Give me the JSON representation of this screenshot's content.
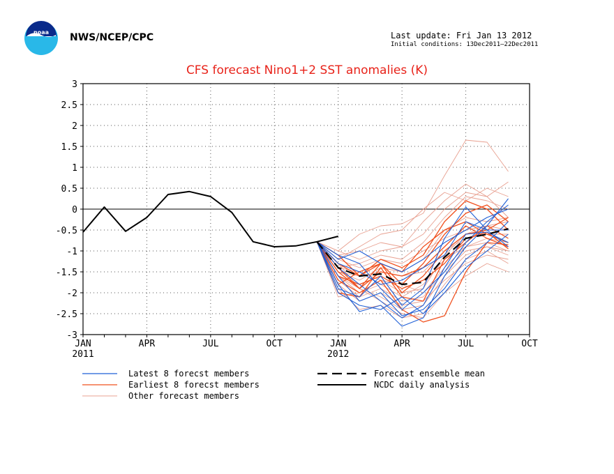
{
  "header": {
    "org": "NWS/NCEP/CPC",
    "last_update": "Last update: Fri Jan 13 2012",
    "initial_conditions": "Initial conditions: 13Dec2011–22Dec2011",
    "logo_text": "noaa"
  },
  "colors": {
    "latest": "#1f5fd6",
    "earliest": "#f0501e",
    "other": "#e8a090",
    "mean": "#000000",
    "analysis": "#000000",
    "title": "#e8231a"
  },
  "legend": {
    "latest": "Latest 8 forecst members",
    "earliest": "Earliest 8 forecst members",
    "other": "Other forecast members",
    "mean": "Forecast ensemble mean",
    "analysis": "NCDC daily analysis"
  },
  "chart_data": {
    "type": "line",
    "title": "CFS forecast Nino1+2 SST anomalies (K)",
    "ylabel": "",
    "xlabel": "",
    "ylim": [
      -3,
      3
    ],
    "yticks": [
      -3,
      -2.5,
      -2,
      -1.5,
      -1,
      -0.5,
      0,
      0.5,
      1,
      1.5,
      2,
      2.5,
      3
    ],
    "ytick_labels": [
      "-3",
      "-2.5",
      "-2",
      "-1.5",
      "-1",
      "-0.5",
      "0",
      "0.5",
      "1",
      "1.5",
      "2",
      "2.5",
      "3"
    ],
    "xlim": [
      "2011-01",
      "2012-10"
    ],
    "xticks": [
      {
        "x": "2011-01",
        "label": "JAN",
        "sublabel": "2011"
      },
      {
        "x": "2011-04",
        "label": "APR",
        "sublabel": ""
      },
      {
        "x": "2011-07",
        "label": "JUL",
        "sublabel": ""
      },
      {
        "x": "2011-10",
        "label": "OCT",
        "sublabel": ""
      },
      {
        "x": "2012-01",
        "label": "JAN",
        "sublabel": "2012"
      },
      {
        "x": "2012-04",
        "label": "APR",
        "sublabel": ""
      },
      {
        "x": "2012-07",
        "label": "JUL",
        "sublabel": ""
      },
      {
        "x": "2012-10",
        "label": "OCT",
        "sublabel": ""
      }
    ],
    "grid": true,
    "zero_line": true,
    "forecast_months": [
      "2011-12",
      "2012-01",
      "2012-02",
      "2012-03",
      "2012-04",
      "2012-05",
      "2012-06",
      "2012-07",
      "2012-08",
      "2012-09"
    ],
    "series": [
      {
        "name": "NCDC daily analysis",
        "group": "analysis",
        "x": [
          "2011-01",
          "2011-02",
          "2011-03",
          "2011-04",
          "2011-05",
          "2011-06",
          "2011-07",
          "2011-08",
          "2011-09",
          "2011-10",
          "2011-11",
          "2011-12",
          "2012-01"
        ],
        "values": [
          -0.55,
          0.05,
          -0.53,
          -0.2,
          0.35,
          0.42,
          0.3,
          -0.08,
          -0.78,
          -0.9,
          -0.88,
          -0.78,
          -0.65
        ]
      },
      {
        "name": "Forecast ensemble mean",
        "group": "mean",
        "values": [
          -0.78,
          -1.4,
          -1.6,
          -1.55,
          -1.8,
          -1.75,
          -1.15,
          -0.7,
          -0.6,
          -0.47
        ]
      },
      {
        "group": "latest",
        "values": [
          -0.78,
          -1.8,
          -2.45,
          -2.3,
          -2.8,
          -2.6,
          -1.6,
          -0.9,
          -0.4,
          0.25
        ]
      },
      {
        "group": "latest",
        "values": [
          -0.78,
          -1.6,
          -2.2,
          -2.0,
          -2.55,
          -2.4,
          -1.9,
          -1.2,
          -0.8,
          -0.3
        ]
      },
      {
        "group": "latest",
        "values": [
          -0.78,
          -1.2,
          -1.0,
          -1.3,
          -1.5,
          -1.2,
          -0.8,
          -0.5,
          -0.2,
          0.0
        ]
      },
      {
        "group": "latest",
        "values": [
          -0.78,
          -1.9,
          -2.1,
          -1.6,
          -2.3,
          -1.9,
          -0.7,
          0.05,
          -0.5,
          -0.9
        ]
      },
      {
        "group": "latest",
        "values": [
          -0.78,
          -1.4,
          -1.8,
          -2.2,
          -2.6,
          -2.3,
          -1.4,
          -0.6,
          -0.55,
          -0.8
        ]
      },
      {
        "group": "latest",
        "values": [
          -0.78,
          -1.3,
          -1.5,
          -1.8,
          -1.7,
          -1.4,
          -1.1,
          -0.3,
          -0.5,
          -0.5
        ]
      },
      {
        "group": "latest",
        "values": [
          -0.78,
          -2.0,
          -2.3,
          -2.4,
          -2.1,
          -2.5,
          -2.0,
          -1.4,
          -1.0,
          -0.6
        ]
      },
      {
        "group": "latest",
        "values": [
          -0.78,
          -1.1,
          -1.3,
          -1.9,
          -2.4,
          -2.0,
          -1.5,
          -0.8,
          -0.3,
          0.1
        ]
      },
      {
        "group": "earliest",
        "values": [
          -0.78,
          -1.5,
          -1.9,
          -1.3,
          -1.8,
          -1.3,
          -0.6,
          -0.1,
          0.1,
          -0.3
        ]
      },
      {
        "group": "earliest",
        "values": [
          -0.78,
          -1.7,
          -2.0,
          -1.7,
          -2.4,
          -2.7,
          -2.55,
          -1.5,
          -0.8,
          -0.85
        ]
      },
      {
        "group": "earliest",
        "values": [
          -0.78,
          -1.3,
          -1.6,
          -1.3,
          -1.5,
          -0.9,
          -0.5,
          -0.3,
          -0.6,
          -0.8
        ]
      },
      {
        "group": "earliest",
        "values": [
          -0.78,
          -1.8,
          -1.5,
          -1.3,
          -2.0,
          -1.6,
          -1.0,
          -0.6,
          -0.5,
          -0.2
        ]
      },
      {
        "group": "earliest",
        "values": [
          -0.78,
          -1.1,
          -1.6,
          -1.2,
          -1.4,
          -1.1,
          -0.3,
          0.2,
          0.0,
          -0.5
        ]
      },
      {
        "group": "earliest",
        "values": [
          -0.78,
          -2.0,
          -2.1,
          -1.4,
          -2.1,
          -2.2,
          -1.2,
          -0.8,
          -0.4,
          -0.7
        ]
      },
      {
        "group": "earliest",
        "values": [
          -0.78,
          -1.6,
          -1.8,
          -1.6,
          -1.9,
          -1.7,
          -1.3,
          -0.7,
          -0.55,
          -0.95
        ]
      },
      {
        "group": "earliest",
        "values": [
          -0.78,
          -1.4,
          -1.9,
          -1.5,
          -1.6,
          -1.4,
          -0.9,
          -0.4,
          -0.7,
          -0.9
        ]
      },
      {
        "group": "other",
        "values": [
          -0.78,
          -1.0,
          -0.6,
          -0.4,
          -0.35,
          -0.1,
          0.8,
          1.65,
          1.6,
          0.9
        ]
      },
      {
        "group": "other",
        "values": [
          -0.78,
          -1.2,
          -0.9,
          -0.6,
          -0.5,
          0.0,
          0.4,
          0.2,
          0.5,
          0.3
        ]
      },
      {
        "group": "other",
        "values": [
          -0.78,
          -1.1,
          -1.0,
          -0.8,
          -0.9,
          -0.3,
          0.2,
          0.6,
          0.3,
          0.65
        ]
      },
      {
        "group": "other",
        "values": [
          -0.78,
          -1.4,
          -1.3,
          -1.1,
          -1.2,
          -0.8,
          -0.2,
          0.3,
          0.2,
          0.0
        ]
      },
      {
        "group": "other",
        "values": [
          -0.78,
          -1.5,
          -1.7,
          -1.4,
          -1.5,
          -1.2,
          -0.5,
          -0.2,
          -0.3,
          -0.2
        ]
      },
      {
        "group": "other",
        "values": [
          -0.78,
          -1.6,
          -2.0,
          -1.8,
          -2.1,
          -1.8,
          -1.2,
          -0.9,
          -0.8,
          -1.0
        ]
      },
      {
        "group": "other",
        "values": [
          -0.78,
          -1.8,
          -2.2,
          -2.0,
          -2.3,
          -2.2,
          -1.7,
          -1.3,
          -1.1,
          -1.2
        ]
      },
      {
        "group": "other",
        "values": [
          -0.78,
          -1.3,
          -1.9,
          -2.2,
          -2.5,
          -2.6,
          -2.0,
          -1.6,
          -1.3,
          -1.5
        ]
      },
      {
        "group": "other",
        "values": [
          -0.78,
          -1.2,
          -1.4,
          -1.2,
          -1.3,
          -1.0,
          -0.7,
          -0.5,
          -0.4,
          -0.3
        ]
      },
      {
        "group": "other",
        "values": [
          -0.78,
          -1.7,
          -2.1,
          -1.9,
          -2.2,
          -2.1,
          -1.5,
          -1.0,
          -0.9,
          -1.1
        ]
      },
      {
        "group": "other",
        "values": [
          -0.78,
          -1.9,
          -2.4,
          -2.3,
          -2.6,
          -2.5,
          -1.8,
          -1.2,
          -1.0,
          -1.3
        ]
      },
      {
        "group": "other",
        "values": [
          -0.78,
          -1.0,
          -1.2,
          -1.0,
          -0.9,
          -0.6,
          0.0,
          0.4,
          0.3,
          -0.2
        ]
      },
      {
        "group": "other",
        "values": [
          -0.78,
          -1.5,
          -1.6,
          -1.5,
          -1.6,
          -1.5,
          -1.0,
          -0.7,
          -0.6,
          -0.6
        ]
      },
      {
        "group": "other",
        "values": [
          -0.78,
          -2.1,
          -2.0,
          -1.7,
          -1.8,
          -2.0,
          -1.4,
          -0.9,
          -0.7,
          -0.8
        ]
      },
      {
        "group": "other",
        "values": [
          -0.78,
          -1.4,
          -1.5,
          -1.7,
          -2.0,
          -1.9,
          -1.1,
          -0.6,
          -0.4,
          -0.5
        ]
      },
      {
        "group": "other",
        "values": [
          -0.78,
          -1.6,
          -1.9,
          -2.1,
          -2.4,
          -2.3,
          -1.6,
          -1.1,
          -0.9,
          -1.0
        ]
      }
    ]
  }
}
